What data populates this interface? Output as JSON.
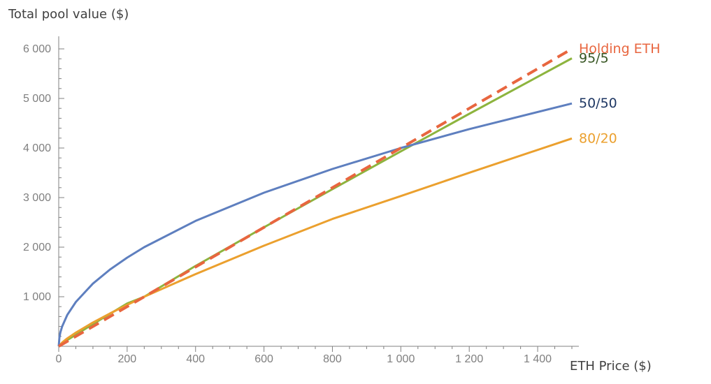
{
  "chart_data": {
    "type": "line",
    "title": "",
    "xlabel": "ETH Price ($)",
    "ylabel": "Total pool value ($)",
    "xlim": [
      0,
      1500
    ],
    "ylim": [
      0,
      6000
    ],
    "x_ticks": [
      0,
      200,
      400,
      600,
      800,
      1000,
      1200,
      1400
    ],
    "x_tick_labels": [
      "0",
      "200",
      "400",
      "600",
      "800",
      "1 000",
      "1 200",
      "1 400"
    ],
    "y_ticks": [
      1000,
      2000,
      3000,
      4000,
      5000,
      6000
    ],
    "y_tick_labels": [
      "1 000",
      "2 000",
      "3 000",
      "4 000",
      "5 000",
      "6 000"
    ],
    "x_minor_step": 50,
    "y_minor_step": 200,
    "grid": false,
    "legend": "inline labels at right end of each line",
    "series": [
      {
        "name": "Holding ETH",
        "color": "#e8663f",
        "dashed": true,
        "x": [
          0,
          250,
          500,
          750,
          1000,
          1250,
          1500
        ],
        "values": [
          0,
          1000,
          2000,
          3000,
          4000,
          5000,
          6000
        ]
      },
      {
        "name": "95/5",
        "color": "#8db43e",
        "label_color": "#375623",
        "dashed": false,
        "x": [
          0,
          10,
          25,
          50,
          100,
          150,
          200,
          250,
          400,
          600,
          800,
          1000,
          1200,
          1500
        ],
        "values": [
          0,
          58,
          125,
          235,
          448,
          657,
          863,
          1000,
          1621,
          2400,
          3170,
          3933,
          4690,
          5810
        ]
      },
      {
        "name": "80/20",
        "color": "#eba02e",
        "dashed": false,
        "x": [
          0,
          10,
          25,
          50,
          100,
          150,
          200,
          250,
          400,
          600,
          800,
          1000,
          1200,
          1500
        ],
        "values": [
          0,
          76,
          159,
          276,
          480,
          663,
          835,
          1000,
          1457,
          2030,
          2569,
          3031,
          3501,
          4193
        ]
      },
      {
        "name": "50/50",
        "color": "#5e7fbf",
        "label_color": "#1f3864",
        "dashed": false,
        "x": [
          0,
          2,
          5,
          10,
          25,
          50,
          100,
          150,
          200,
          250,
          400,
          600,
          800,
          1000,
          1200,
          1500
        ],
        "values": [
          0,
          179,
          283,
          400,
          632,
          894,
          1265,
          1549,
          1789,
          2000,
          2530,
          3098,
          3578,
          4000,
          4382,
          4899
        ]
      }
    ]
  }
}
